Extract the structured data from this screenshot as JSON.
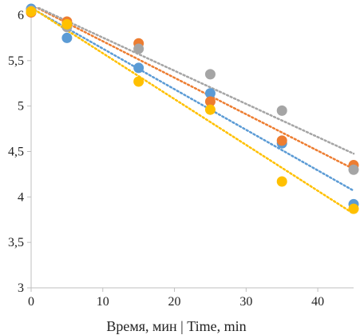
{
  "chart_data": {
    "type": "scatter",
    "title": "",
    "xlabel": "Время, мин | Time, min",
    "ylabel": "",
    "xlim": [
      0,
      45
    ],
    "ylim": [
      3,
      6
    ],
    "x_ticks": [
      0,
      10,
      20,
      30,
      40
    ],
    "y_ticks": [
      3,
      3.5,
      4,
      4.5,
      5,
      5.5,
      6
    ],
    "x_tick_labels": [
      "0",
      "10",
      "20",
      "30",
      "40"
    ],
    "y_tick_labels": [
      "3",
      "3,5",
      "4",
      "4,5",
      "5",
      "5,5",
      "6"
    ],
    "grid": false,
    "legend": false,
    "trendline": "linear, dotted",
    "series": [
      {
        "color": "#5b9bd5",
        "x": [
          0,
          5,
          15,
          25,
          35,
          45
        ],
        "y": [
          6.07,
          5.75,
          5.42,
          5.14,
          4.59,
          3.92
        ]
      },
      {
        "color": "#ed7d31",
        "x": [
          0,
          5,
          15,
          25,
          35,
          45
        ],
        "y": [
          6.03,
          5.93,
          5.69,
          5.05,
          4.62,
          4.35
        ]
      },
      {
        "color": "#a5a5a5",
        "x": [
          0,
          5,
          15,
          25,
          35,
          45
        ],
        "y": [
          6.05,
          5.87,
          5.63,
          5.35,
          4.95,
          4.3
        ]
      },
      {
        "color": "#ffc000",
        "x": [
          0,
          5,
          15,
          25,
          35,
          45
        ],
        "y": [
          6.04,
          5.9,
          5.27,
          4.96,
          4.17,
          3.87
        ]
      }
    ]
  }
}
